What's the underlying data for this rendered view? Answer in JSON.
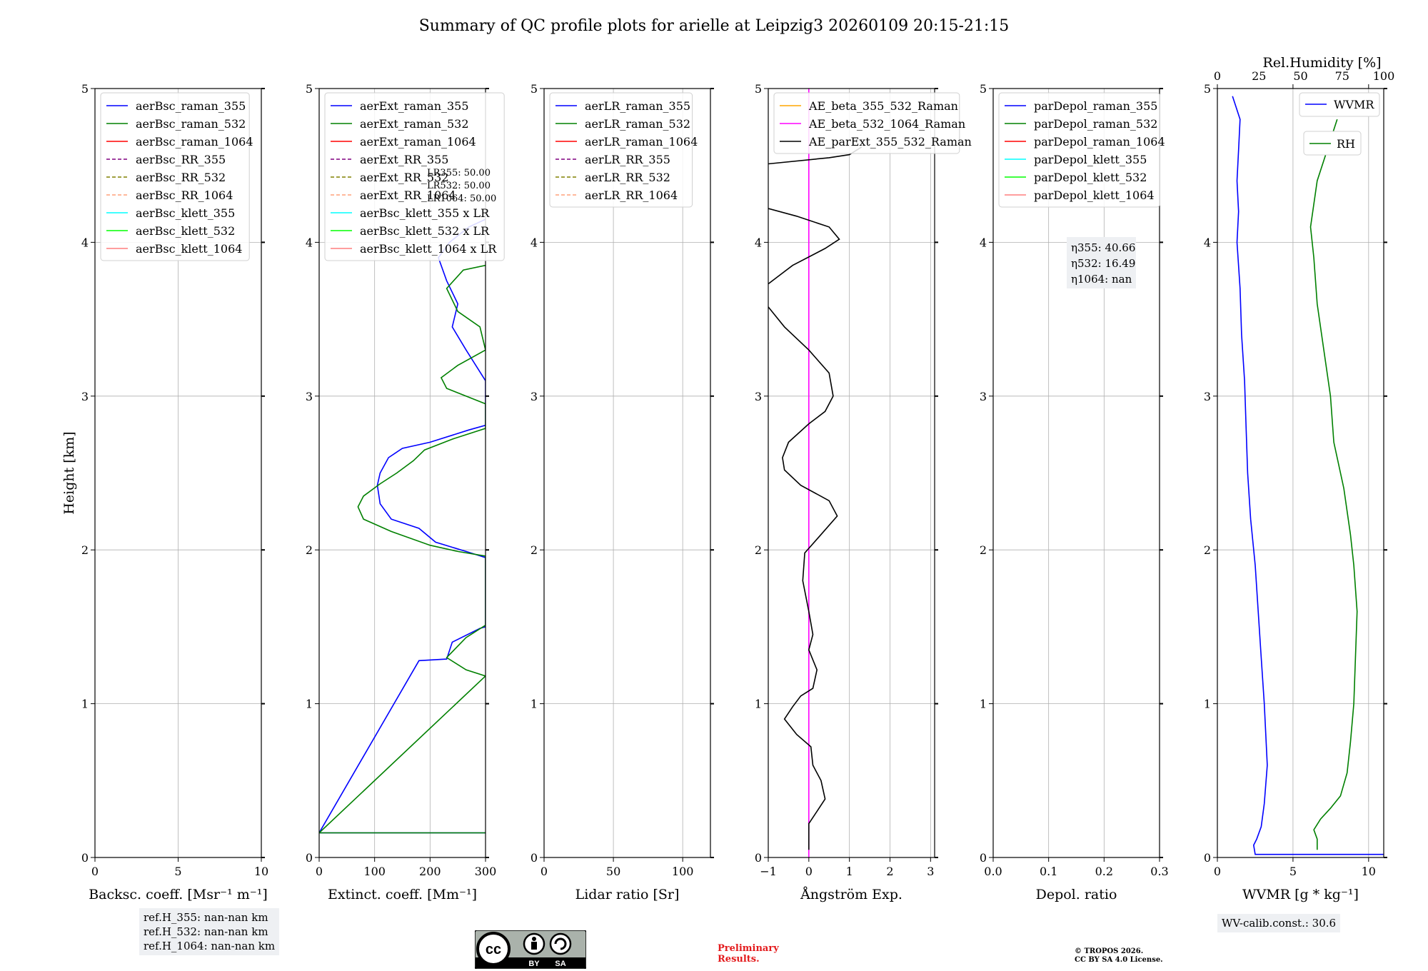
{
  "figure_title": "Summary of QC profile plots for arielle at Leipzig3 20260109 20:15-21:15",
  "chart_data": [
    {
      "type": "line",
      "name": "backscatter",
      "xlabel": "Backsc. coeff. [Msr⁻¹ m⁻¹]",
      "ylabel": "Height [km]",
      "xlim": [
        0,
        10
      ],
      "ylim": [
        0,
        5
      ],
      "xticks": [
        "0",
        "5",
        "10"
      ],
      "yticks": [
        "0",
        "1",
        "2",
        "3",
        "4",
        "5"
      ],
      "legend": "top-left",
      "series": [
        {
          "name": "aerBsc_raman_355",
          "color": "#0000ff",
          "dash": "solid",
          "points": []
        },
        {
          "name": "aerBsc_raman_532",
          "color": "#008000",
          "dash": "solid",
          "points": []
        },
        {
          "name": "aerBsc_raman_1064",
          "color": "#ff0000",
          "dash": "solid",
          "points": []
        },
        {
          "name": "aerBsc_RR_355",
          "color": "#800080",
          "dash": "dashed",
          "points": []
        },
        {
          "name": "aerBsc_RR_532",
          "color": "#808000",
          "dash": "dashed",
          "points": []
        },
        {
          "name": "aerBsc_RR_1064",
          "color": "#ffa07a",
          "dash": "dashed",
          "points": []
        },
        {
          "name": "aerBsc_klett_355",
          "color": "#00ffff",
          "dash": "solid",
          "points": []
        },
        {
          "name": "aerBsc_klett_532",
          "color": "#00ff00",
          "dash": "solid",
          "points": []
        },
        {
          "name": "aerBsc_klett_1064",
          "color": "#ff7f7f",
          "dash": "solid",
          "points": []
        }
      ]
    },
    {
      "type": "line",
      "name": "extinction",
      "xlabel": "Extinct. coeff. [Mm⁻¹]",
      "ylabel": "",
      "xlim": [
        0,
        300
      ],
      "ylim": [
        0,
        5
      ],
      "xticks": [
        "0",
        "100",
        "200",
        "300"
      ],
      "yticks": [
        "0",
        "1",
        "2",
        "3",
        "4",
        "5"
      ],
      "legend": "top-left",
      "annotations": [
        "LR355: 50.00",
        "LR532: 50.00",
        "LR1064: 50.00"
      ],
      "series": [
        {
          "name": "aerExt_raman_355",
          "color": "#0000ff",
          "dash": "solid",
          "points": [
            [
              300,
              0.16
            ],
            [
              0,
              0.16
            ],
            [
              180,
              1.28
            ],
            [
              230,
              1.29
            ],
            [
              240,
              1.4
            ],
            [
              290,
              1.49
            ],
            [
              300,
              1.5
            ],
            [
              300,
              1.95
            ],
            [
              265,
              1.99
            ],
            [
              210,
              2.05
            ],
            [
              180,
              2.14
            ],
            [
              130,
              2.2
            ],
            [
              110,
              2.3
            ],
            [
              105,
              2.42
            ],
            [
              110,
              2.5
            ],
            [
              125,
              2.6
            ],
            [
              150,
              2.66
            ],
            [
              200,
              2.7
            ],
            [
              270,
              2.78
            ],
            [
              300,
              2.81
            ],
            [
              300,
              3.1
            ],
            [
              265,
              3.3
            ],
            [
              240,
              3.45
            ],
            [
              250,
              3.6
            ],
            [
              230,
              3.75
            ],
            [
              215,
              3.9
            ],
            [
              235,
              4.0
            ],
            [
              270,
              4.1
            ],
            [
              300,
              4.15
            ]
          ]
        },
        {
          "name": "aerExt_raman_532",
          "color": "#008000",
          "dash": "solid",
          "points": [
            [
              300,
              0.16
            ],
            [
              0,
              0.16
            ],
            [
              300,
              1.18
            ],
            [
              265,
              1.22
            ],
            [
              230,
              1.3
            ],
            [
              265,
              1.43
            ],
            [
              300,
              1.51
            ],
            [
              300,
              1.96
            ],
            [
              250,
              1.99
            ],
            [
              200,
              2.03
            ],
            [
              130,
              2.12
            ],
            [
              80,
              2.2
            ],
            [
              70,
              2.28
            ],
            [
              80,
              2.35
            ],
            [
              110,
              2.43
            ],
            [
              140,
              2.5
            ],
            [
              170,
              2.58
            ],
            [
              190,
              2.65
            ],
            [
              240,
              2.72
            ],
            [
              300,
              2.79
            ],
            [
              300,
              2.95
            ],
            [
              230,
              3.05
            ],
            [
              220,
              3.12
            ],
            [
              250,
              3.2
            ],
            [
              300,
              3.3
            ],
            [
              290,
              3.45
            ],
            [
              250,
              3.55
            ],
            [
              230,
              3.7
            ],
            [
              260,
              3.82
            ],
            [
              300,
              3.85
            ]
          ]
        },
        {
          "name": "aerExt_raman_1064",
          "color": "#ff0000",
          "dash": "solid",
          "points": []
        },
        {
          "name": "aerExt_RR_355",
          "color": "#800080",
          "dash": "dashed",
          "points": []
        },
        {
          "name": "aerExt_RR_532",
          "color": "#808000",
          "dash": "dashed",
          "points": []
        },
        {
          "name": "aerExt_RR_1064",
          "color": "#ffa07a",
          "dash": "dashed",
          "points": []
        },
        {
          "name": "aerBsc_klett_355 x LR",
          "color": "#00ffff",
          "dash": "solid",
          "points": []
        },
        {
          "name": "aerBsc_klett_532 x LR",
          "color": "#00ff00",
          "dash": "solid",
          "points": []
        },
        {
          "name": "aerBsc_klett_1064 x LR",
          "color": "#ff7f7f",
          "dash": "solid",
          "points": []
        }
      ]
    },
    {
      "type": "line",
      "name": "lidar-ratio",
      "xlabel": "Lidar ratio [Sr]",
      "ylabel": "",
      "xlim": [
        0,
        120
      ],
      "ylim": [
        0,
        5
      ],
      "xticks": [
        "0",
        "50",
        "100"
      ],
      "yticks": [
        "0",
        "1",
        "2",
        "3",
        "4",
        "5"
      ],
      "legend": "top-left",
      "series": [
        {
          "name": "aerLR_raman_355",
          "color": "#0000ff",
          "dash": "solid",
          "points": []
        },
        {
          "name": "aerLR_raman_532",
          "color": "#008000",
          "dash": "solid",
          "points": []
        },
        {
          "name": "aerLR_raman_1064",
          "color": "#ff0000",
          "dash": "solid",
          "points": []
        },
        {
          "name": "aerLR_RR_355",
          "color": "#800080",
          "dash": "dashed",
          "points": []
        },
        {
          "name": "aerLR_RR_532",
          "color": "#808000",
          "dash": "dashed",
          "points": []
        },
        {
          "name": "aerLR_RR_1064",
          "color": "#ffa07a",
          "dash": "dashed",
          "points": []
        }
      ]
    },
    {
      "type": "line",
      "name": "angstrom",
      "xlabel": "Ångström Exp.",
      "ylabel": "",
      "xlim": [
        -1,
        3.1
      ],
      "ylim": [
        0,
        5
      ],
      "xticks": [
        "−1",
        "0",
        "1",
        "2",
        "3"
      ],
      "yticks": [
        "0",
        "1",
        "2",
        "3",
        "4",
        "5"
      ],
      "legend": "top-left",
      "series": [
        {
          "name": "AE_beta_355_532_Raman",
          "color": "#ffa500",
          "dash": "solid",
          "points": []
        },
        {
          "name": "AE_beta_532_1064_Raman",
          "color": "#ff00ff",
          "dash": "solid",
          "points": [
            [
              0,
              0
            ],
            [
              0,
              5
            ]
          ]
        },
        {
          "name": "AE_parExt_355_532_Raman",
          "color": "#000000",
          "dash": "solid",
          "points": [
            [
              0,
              0.05
            ],
            [
              0,
              0.22
            ],
            [
              0.2,
              0.3
            ],
            [
              0.4,
              0.38
            ],
            [
              0.3,
              0.5
            ],
            [
              0.1,
              0.6
            ],
            [
              0.05,
              0.72
            ],
            [
              -0.3,
              0.8
            ],
            [
              -0.6,
              0.9
            ],
            [
              -0.4,
              0.98
            ],
            [
              -0.2,
              1.05
            ],
            [
              0.1,
              1.1
            ],
            [
              0.2,
              1.22
            ],
            [
              0,
              1.35
            ],
            [
              0.1,
              1.45
            ],
            [
              0,
              1.6
            ],
            [
              -0.15,
              1.8
            ],
            [
              -0.1,
              1.98
            ],
            [
              0.3,
              2.1
            ],
            [
              0.7,
              2.22
            ],
            [
              0.5,
              2.32
            ],
            [
              -0.2,
              2.42
            ],
            [
              -0.6,
              2.52
            ],
            [
              -0.65,
              2.6
            ],
            [
              -0.5,
              2.7
            ],
            [
              0,
              2.82
            ],
            [
              0.4,
              2.9
            ],
            [
              0.6,
              3.0
            ],
            [
              0.5,
              3.15
            ],
            [
              0,
              3.3
            ],
            [
              -0.6,
              3.45
            ],
            [
              -1,
              3.58
            ]
          ]
        },
        {
          "name": "AE_parExt_355_532_Raman (upper)",
          "color": "#000000",
          "dash": "solid",
          "points": [
            [
              -1,
              3.73
            ],
            [
              -0.4,
              3.85
            ],
            [
              0.4,
              3.96
            ],
            [
              0.75,
              4.02
            ],
            [
              0.5,
              4.1
            ],
            [
              -0.3,
              4.17
            ],
            [
              -1,
              4.22
            ]
          ]
        },
        {
          "name": "AE_parExt_355_532_Raman (top)",
          "color": "#000000",
          "dash": "solid",
          "points": [
            [
              -1,
              4.51
            ],
            [
              0.5,
              4.55
            ],
            [
              1,
              4.57
            ],
            [
              1.3,
              4.62
            ]
          ]
        }
      ]
    },
    {
      "type": "line",
      "name": "depolarization",
      "xlabel": "Depol. ratio",
      "ylabel": "",
      "xlim": [
        0,
        0.3
      ],
      "ylim": [
        0,
        5
      ],
      "xticks": [
        "0.0",
        "0.1",
        "0.2",
        "0.3"
      ],
      "yticks": [
        "0",
        "1",
        "2",
        "3",
        "4",
        "5"
      ],
      "legend": "top-left",
      "annotations": [
        "η355: 40.66",
        "η532: 16.49",
        "η1064: nan"
      ],
      "series": [
        {
          "name": "parDepol_raman_355",
          "color": "#0000ff",
          "dash": "solid",
          "points": []
        },
        {
          "name": "parDepol_raman_532",
          "color": "#008000",
          "dash": "solid",
          "points": []
        },
        {
          "name": "parDepol_raman_1064",
          "color": "#ff0000",
          "dash": "solid",
          "points": []
        },
        {
          "name": "parDepol_klett_355",
          "color": "#00ffff",
          "dash": "solid",
          "points": []
        },
        {
          "name": "parDepol_klett_532",
          "color": "#00ff00",
          "dash": "solid",
          "points": []
        },
        {
          "name": "parDepol_klett_1064",
          "color": "#ff7f7f",
          "dash": "solid",
          "points": []
        }
      ]
    },
    {
      "type": "line",
      "name": "water-vapour",
      "xlabel": "WVMR [g * kg⁻¹]",
      "ylabel": "",
      "xlim": [
        0,
        11
      ],
      "ylim": [
        0,
        5
      ],
      "xticks": [
        "0",
        "5",
        "10"
      ],
      "yticks": [
        "0",
        "1",
        "2",
        "3",
        "4",
        "5"
      ],
      "top_axis": {
        "label": "Rel.Humidity [%]",
        "lim": [
          0,
          100
        ],
        "ticks": [
          "0",
          "25",
          "50",
          "75",
          "100"
        ]
      },
      "legend": "top-right",
      "series": [
        {
          "name": "WVMR",
          "color": "#0000ff",
          "dash": "solid",
          "axis": "bottom",
          "points": [
            [
              11,
              0.02
            ],
            [
              2.5,
              0.02
            ],
            [
              2.4,
              0.08
            ],
            [
              2.6,
              0.12
            ],
            [
              2.9,
              0.2
            ],
            [
              3.1,
              0.35
            ],
            [
              3.3,
              0.6
            ],
            [
              3.1,
              1.0
            ],
            [
              2.9,
              1.3
            ],
            [
              2.7,
              1.6
            ],
            [
              2.5,
              1.9
            ],
            [
              2.2,
              2.2
            ],
            [
              2.0,
              2.5
            ],
            [
              1.9,
              2.8
            ],
            [
              1.8,
              3.1
            ],
            [
              1.6,
              3.4
            ],
            [
              1.5,
              3.7
            ],
            [
              1.3,
              4.0
            ],
            [
              1.4,
              4.2
            ],
            [
              1.3,
              4.4
            ],
            [
              1.4,
              4.6
            ],
            [
              1.5,
              4.8
            ],
            [
              1.0,
              4.95
            ]
          ]
        },
        {
          "name": "RH",
          "color": "#008000",
          "dash": "solid",
          "axis": "top",
          "points": [
            [
              60,
              0.05
            ],
            [
              60,
              0.12
            ],
            [
              58,
              0.18
            ],
            [
              62,
              0.25
            ],
            [
              68,
              0.32
            ],
            [
              74,
              0.4
            ],
            [
              78,
              0.55
            ],
            [
              80,
              0.75
            ],
            [
              82,
              1.0
            ],
            [
              83,
              1.3
            ],
            [
              84,
              1.6
            ],
            [
              82,
              1.9
            ],
            [
              80,
              2.1
            ],
            [
              76,
              2.4
            ],
            [
              70,
              2.7
            ],
            [
              68,
              3.0
            ],
            [
              64,
              3.3
            ],
            [
              60,
              3.6
            ],
            [
              58,
              3.9
            ],
            [
              56,
              4.1
            ],
            [
              60,
              4.4
            ],
            [
              66,
              4.6
            ],
            [
              72,
              4.8
            ]
          ]
        }
      ]
    }
  ],
  "reference_heights": [
    "ref.H_355: nan-nan km",
    "ref.H_532: nan-nan km",
    "ref.H_1064: nan-nan km"
  ],
  "license_badge": {
    "top": "cc",
    "by": "BY",
    "sa": "SA"
  },
  "preliminary": [
    "Preliminary",
    "Results."
  ],
  "copyright": [
    "© TROPOS 2026.",
    "CC BY SA 4.0 License."
  ],
  "wv_calib": "WV-calib.const.: 30.6"
}
